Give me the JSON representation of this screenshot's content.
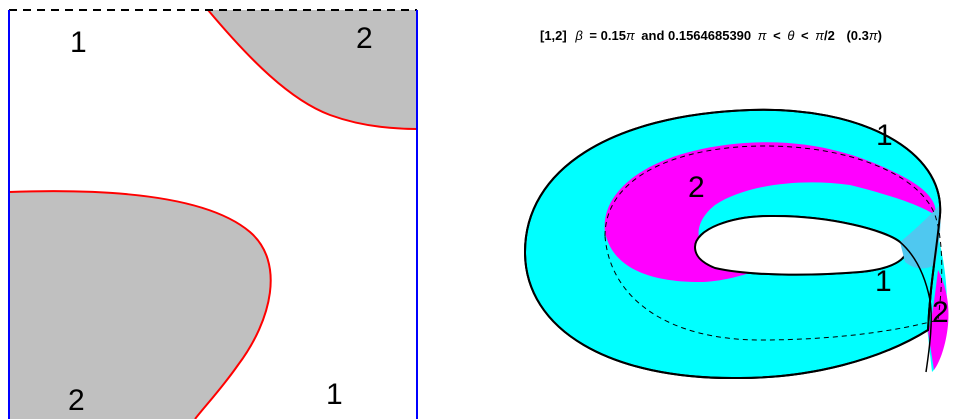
{
  "strip_diagram": {
    "labels": {
      "top_left": "1",
      "top_right": "2",
      "bottom_left": "2",
      "bottom_right": "1"
    },
    "colors": {
      "shaded": "#c0c0c0",
      "boundary_curve": "#ff0000",
      "side_edges": "#0000ff",
      "top_edge": "#000000"
    }
  },
  "mobius_view": {
    "title": {
      "prefix": "[1,2]",
      "beta_sym": "β",
      "beta_rhs": "= 0.15",
      "pi1": "π",
      "and_text": "and 0.1564685390",
      "pi2": "π",
      "lt1": "<",
      "theta": "θ",
      "lt2": "<",
      "pi3": "π",
      "over2": "/2",
      "paren_open": "(0.3",
      "pi4": "π",
      "paren_close": ")"
    },
    "labels": {
      "outer_top": "1",
      "inner_magenta": "2",
      "outer_right": "1",
      "edge_right": "2"
    },
    "colors": {
      "band": "#00ffff",
      "region2": "#ff00ff",
      "edge": "#000000"
    }
  }
}
